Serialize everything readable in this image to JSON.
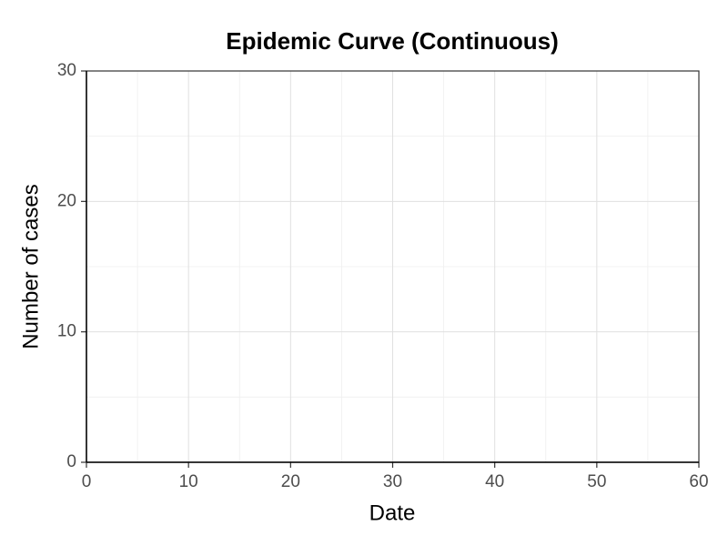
{
  "chart_data": {
    "type": "histogram",
    "title": "Epidemic Curve (Continuous)",
    "x_label": "Date",
    "y_label": "Number of cases",
    "xlim": [
      0,
      60
    ],
    "xticks": [
      0,
      10,
      20,
      30,
      40,
      50,
      60
    ],
    "ylim": [
      0,
      30
    ],
    "yticks": [
      0,
      10,
      20,
      30
    ],
    "grid": true
  }
}
